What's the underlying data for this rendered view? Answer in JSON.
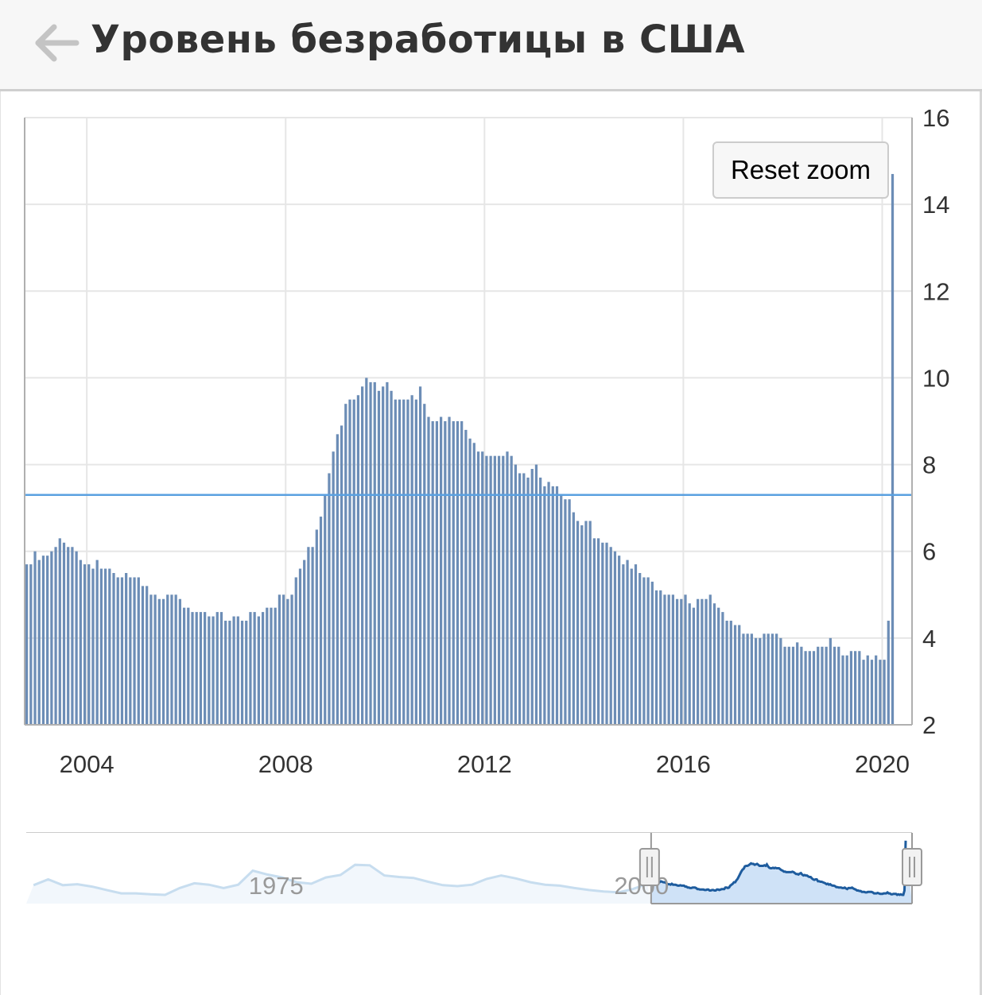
{
  "header": {
    "title": "Уровень безработицы в США",
    "back_icon": "arrow-left-icon"
  },
  "reset_zoom": {
    "label": "Reset zoom"
  },
  "colors": {
    "bars": "#6c8db6",
    "reference_line": "#5aa0e0",
    "grid": "#e6e6e6",
    "navigator_selected_fill": "#cfe2f7",
    "navigator_selected_line": "#1e5c9e",
    "navigator_faded_line": "#c7ddef"
  },
  "chart_data": {
    "type": "bar",
    "title": "",
    "x_axis": {
      "ticks": [
        "2004",
        "2008",
        "2012",
        "2016",
        "2020"
      ],
      "range": [
        2002.75,
        2020.6
      ]
    },
    "y_axis": {
      "ticks": [
        "2",
        "4",
        "6",
        "8",
        "10",
        "12",
        "14",
        "16"
      ],
      "range": [
        2,
        16
      ],
      "position": "right"
    },
    "reference_line": {
      "y": 7.3
    },
    "series": [
      {
        "frequency": "monthly",
        "start": "2002-10",
        "values": [
          5.7,
          5.7,
          6.0,
          5.8,
          5.9,
          5.9,
          6.0,
          6.1,
          6.3,
          6.2,
          6.1,
          6.1,
          6.0,
          5.8,
          5.7,
          5.7,
          5.6,
          5.8,
          5.6,
          5.6,
          5.6,
          5.5,
          5.4,
          5.4,
          5.5,
          5.4,
          5.4,
          5.4,
          5.2,
          5.2,
          5.0,
          5.0,
          4.9,
          4.9,
          5.0,
          5.0,
          5.0,
          4.9,
          4.7,
          4.7,
          4.6,
          4.6,
          4.6,
          4.6,
          4.5,
          4.5,
          4.6,
          4.6,
          4.4,
          4.4,
          4.5,
          4.5,
          4.4,
          4.4,
          4.6,
          4.6,
          4.5,
          4.6,
          4.7,
          4.7,
          4.7,
          5.0,
          5.0,
          4.9,
          5.0,
          5.4,
          5.6,
          5.8,
          6.1,
          6.1,
          6.5,
          6.8,
          7.3,
          7.8,
          8.3,
          8.7,
          8.9,
          9.4,
          9.5,
          9.5,
          9.6,
          9.8,
          10.0,
          9.9,
          9.9,
          9.7,
          9.8,
          9.9,
          9.7,
          9.5,
          9.5,
          9.5,
          9.5,
          9.6,
          9.5,
          9.8,
          9.4,
          9.1,
          9.0,
          9.0,
          9.1,
          9.0,
          9.1,
          9.0,
          9.0,
          9.0,
          8.8,
          8.6,
          8.5,
          8.3,
          8.3,
          8.2,
          8.2,
          8.2,
          8.2,
          8.2,
          8.3,
          8.2,
          8.0,
          7.8,
          7.8,
          7.7,
          7.9,
          8.0,
          7.7,
          7.5,
          7.6,
          7.5,
          7.5,
          7.3,
          7.2,
          7.2,
          6.9,
          6.7,
          6.6,
          6.7,
          6.7,
          6.3,
          6.3,
          6.2,
          6.2,
          6.1,
          6.0,
          5.9,
          5.7,
          5.8,
          5.6,
          5.7,
          5.5,
          5.4,
          5.4,
          5.3,
          5.1,
          5.1,
          5.0,
          5.0,
          5.0,
          4.9,
          4.9,
          5.0,
          4.8,
          4.7,
          4.9,
          4.9,
          4.9,
          5.0,
          4.8,
          4.7,
          4.6,
          4.4,
          4.4,
          4.3,
          4.3,
          4.1,
          4.1,
          4.1,
          4.0,
          4.0,
          4.1,
          4.1,
          4.1,
          4.1,
          4.0,
          3.8,
          3.8,
          3.8,
          3.9,
          3.8,
          3.7,
          3.7,
          3.7,
          3.8,
          3.8,
          3.8,
          4.0,
          3.8,
          3.8,
          3.6,
          3.6,
          3.7,
          3.7,
          3.7,
          3.5,
          3.6,
          3.5,
          3.6,
          3.5,
          3.5,
          4.4,
          14.7
        ]
      }
    ],
    "navigator": {
      "tick_labels": [
        "1975",
        "2000"
      ],
      "x_range": [
        1960,
        2020.6
      ],
      "selected_range": [
        2002.75,
        2020.6
      ],
      "series_annual": [
        [
          1960,
          5.5
        ],
        [
          1961,
          6.7
        ],
        [
          1962,
          5.5
        ],
        [
          1963,
          5.7
        ],
        [
          1964,
          5.2
        ],
        [
          1965,
          4.5
        ],
        [
          1966,
          3.8
        ],
        [
          1967,
          3.8
        ],
        [
          1968,
          3.6
        ],
        [
          1969,
          3.5
        ],
        [
          1970,
          4.9
        ],
        [
          1971,
          5.9
        ],
        [
          1972,
          5.6
        ],
        [
          1973,
          4.9
        ],
        [
          1974,
          5.6
        ],
        [
          1975,
          8.5
        ],
        [
          1976,
          7.7
        ],
        [
          1977,
          7.1
        ],
        [
          1978,
          6.1
        ],
        [
          1979,
          5.8
        ],
        [
          1980,
          7.1
        ],
        [
          1981,
          7.6
        ],
        [
          1982,
          9.7
        ],
        [
          1983,
          9.6
        ],
        [
          1984,
          7.5
        ],
        [
          1985,
          7.2
        ],
        [
          1986,
          7.0
        ],
        [
          1987,
          6.2
        ],
        [
          1988,
          5.5
        ],
        [
          1989,
          5.3
        ],
        [
          1990,
          5.6
        ],
        [
          1991,
          6.8
        ],
        [
          1992,
          7.5
        ],
        [
          1993,
          6.9
        ],
        [
          1994,
          6.1
        ],
        [
          1995,
          5.6
        ],
        [
          1996,
          5.4
        ],
        [
          1997,
          4.9
        ],
        [
          1998,
          4.5
        ],
        [
          1999,
          4.2
        ],
        [
          2000,
          4.0
        ],
        [
          2001,
          4.7
        ],
        [
          2002,
          5.8
        ]
      ]
    }
  }
}
